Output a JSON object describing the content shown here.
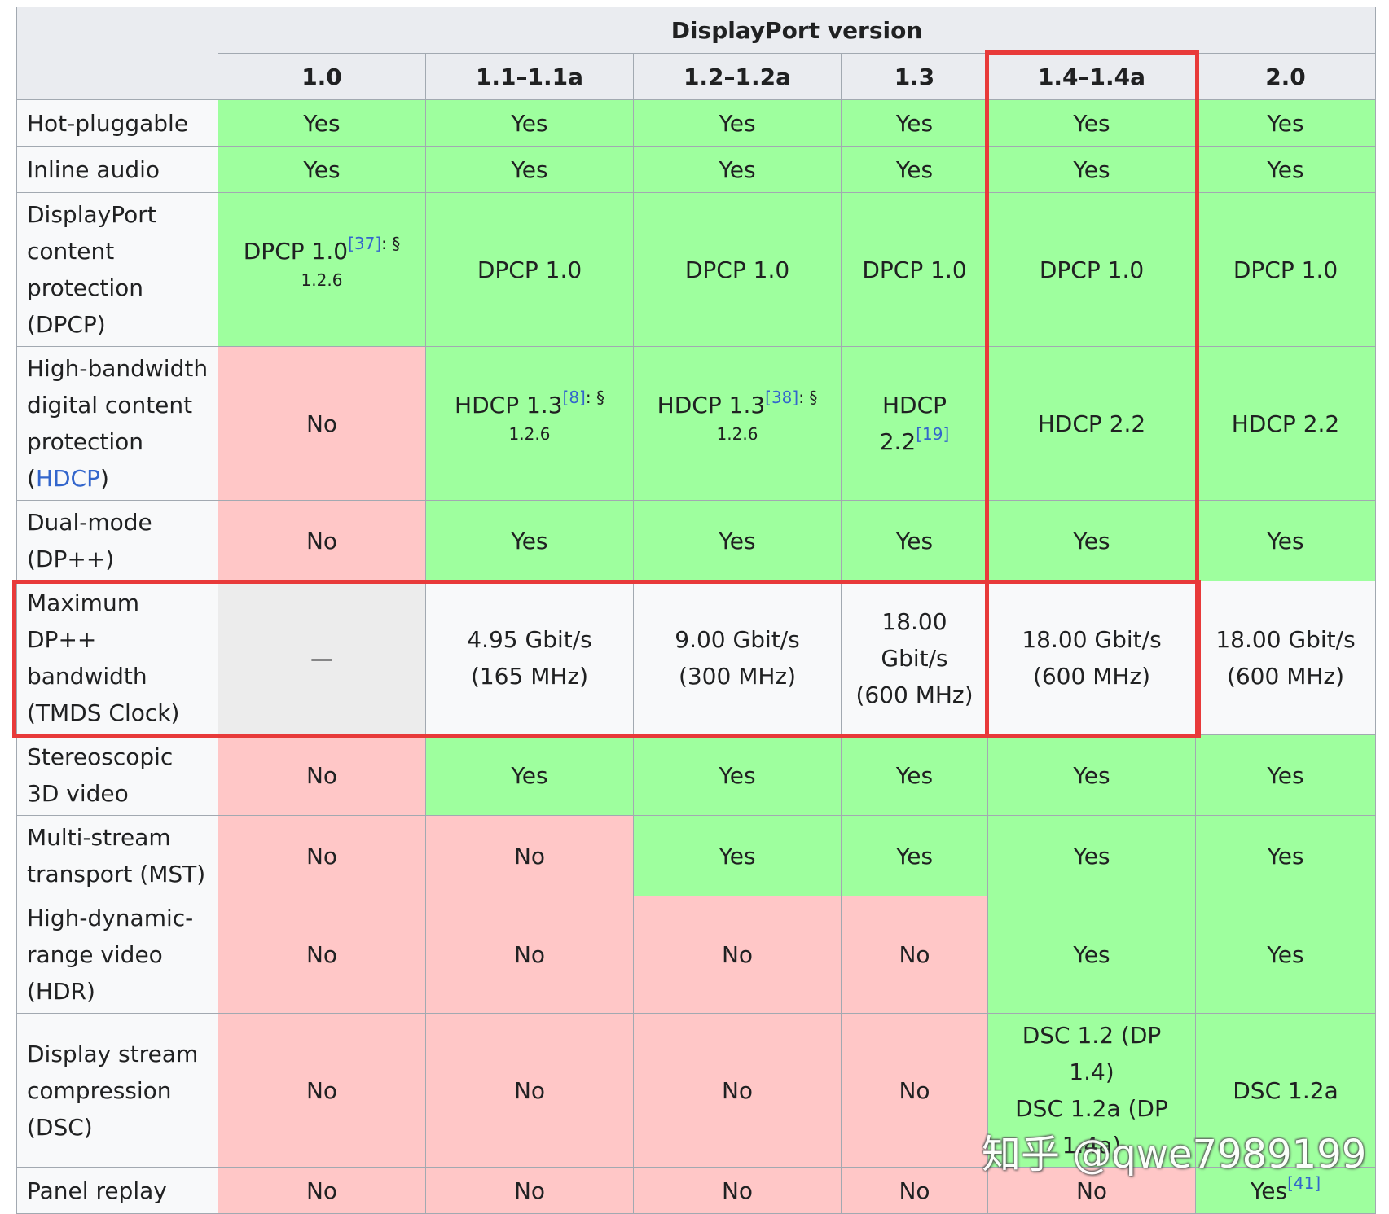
{
  "table": {
    "version_header": "DisplayPort version",
    "columns": [
      "1.0",
      "1.1–1.1a",
      "1.2–1.2a",
      "1.3",
      "1.4–1.4a",
      "2.0"
    ],
    "rows": {
      "hot_pluggable": {
        "label": "Hot-pluggable",
        "cells": [
          "Yes",
          "Yes",
          "Yes",
          "Yes",
          "Yes",
          "Yes"
        ]
      },
      "inline_audio": {
        "label": "Inline audio",
        "cells": [
          "Yes",
          "Yes",
          "Yes",
          "Yes",
          "Yes",
          "Yes"
        ]
      },
      "dpcp": {
        "label": "DisplayPort content protection (DPCP)",
        "cells": [
          "DPCP 1.0",
          "DPCP 1.0",
          "DPCP 1.0",
          "DPCP 1.0",
          "DPCP 1.0",
          "DPCP 1.0"
        ],
        "ref_1_0": "[37]",
        "sec_1_0": ": § 1.2.6"
      },
      "hdcp": {
        "label_prefix": "High-bandwidth digital content protection (",
        "label_link": "HDCP",
        "label_suffix": ")",
        "cells": [
          "No",
          "HDCP 1.3",
          "HDCP 1.3",
          "HDCP 2.2",
          "HDCP 2.2",
          "HDCP 2.2"
        ],
        "ref_1_1": "[8]",
        "sec_1_1": ": § 1.2.6",
        "ref_1_2": "[38]",
        "sec_1_2": ": § 1.2.6",
        "ref_1_3": "[19]"
      },
      "dual_mode": {
        "label": "Dual-mode (DP++)",
        "cells": [
          "No",
          "Yes",
          "Yes",
          "Yes",
          "Yes",
          "Yes"
        ]
      },
      "dpplus_bw": {
        "label": "Maximum DP++ bandwidth (TMDS Clock)",
        "cells": [
          {
            "line1": "—",
            "line2": ""
          },
          {
            "line1": "4.95 Gbit/s",
            "line2": "(165 MHz)"
          },
          {
            "line1": "9.00 Gbit/s",
            "line2": "(300 MHz)"
          },
          {
            "line1": "18.00 Gbit/s",
            "line2": "(600 MHz)"
          },
          {
            "line1": "18.00 Gbit/s",
            "line2": "(600 MHz)"
          },
          {
            "line1": "18.00 Gbit/s",
            "line2": "(600 MHz)"
          }
        ]
      },
      "stereo_3d": {
        "label": "Stereoscopic 3D video",
        "cells": [
          "No",
          "Yes",
          "Yes",
          "Yes",
          "Yes",
          "Yes"
        ]
      },
      "mst": {
        "label": "Multi-stream transport (MST)",
        "cells": [
          "No",
          "No",
          "Yes",
          "Yes",
          "Yes",
          "Yes"
        ]
      },
      "hdr": {
        "label": "High-dynamic-range video (HDR)",
        "cells": [
          "No",
          "No",
          "No",
          "No",
          "Yes",
          "Yes"
        ]
      },
      "dsc": {
        "label": "Display stream compression (DSC)",
        "cells": [
          "No",
          "No",
          "No",
          "No",
          "DSC 1.2 (DP 1.4)",
          "DSC 1.2a"
        ],
        "dsc_1_4_line2": "DSC 1.2a (DP 1.4a)"
      },
      "panel_replay": {
        "label": "Panel replay",
        "cells": [
          "No",
          "No",
          "No",
          "No",
          "No",
          "Yes"
        ],
        "ref_2_0": "[41]"
      }
    }
  },
  "watermark": "知乎 @qwe7989199",
  "colors": {
    "yes": "#9eff9e",
    "no": "#ffc7c7",
    "header": "#eaecf0",
    "highlight": "#e83a3a",
    "link": "#3366cc"
  }
}
